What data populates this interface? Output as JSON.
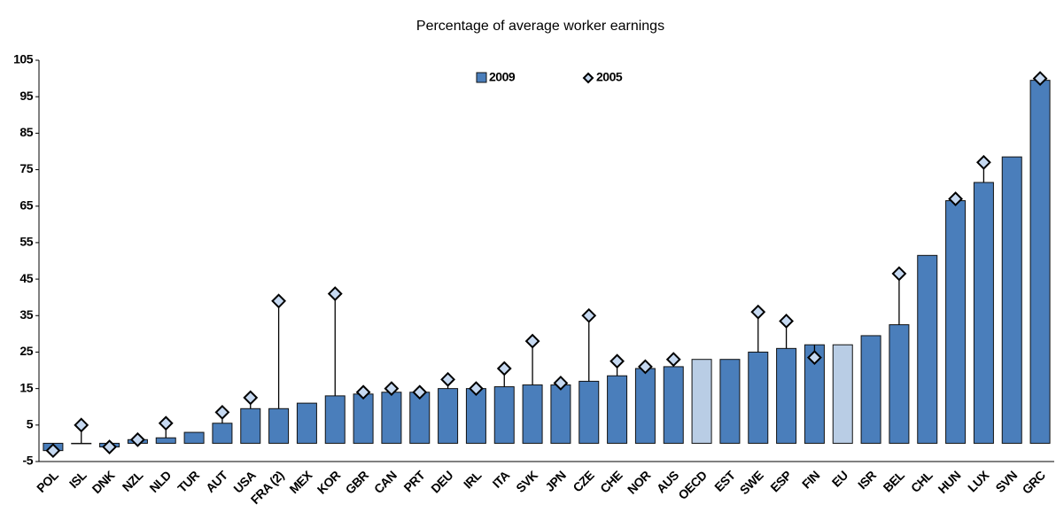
{
  "chart_data": {
    "type": "bar",
    "title": "Percentage of average worker earnings",
    "categories": [
      "POL",
      "ISL",
      "DNK",
      "NZL",
      "NLD",
      "TUR",
      "AUT",
      "USA",
      "FRA (2)",
      "MEX",
      "KOR",
      "GBR",
      "CAN",
      "PRT",
      "DEU",
      "IRL",
      "ITA",
      "SVK",
      "JPN",
      "CZE",
      "CHE",
      "NOR",
      "AUS",
      "OECD",
      "EST",
      "SWE",
      "ESP",
      "FIN",
      "EU",
      "ISR",
      "BEL",
      "CHL",
      "HUN",
      "LUX",
      "SVN",
      "GRC"
    ],
    "series": [
      {
        "name": "2009",
        "color": "#4a7ebb",
        "bar_colors": [
          "#4a7ebb",
          "#4a7ebb",
          "#4a7ebb",
          "#4a7ebb",
          "#4a7ebb",
          "#4a7ebb",
          "#4a7ebb",
          "#4a7ebb",
          "#4a7ebb",
          "#4a7ebb",
          "#4a7ebb",
          "#4a7ebb",
          "#4a7ebb",
          "#4a7ebb",
          "#4a7ebb",
          "#4a7ebb",
          "#4a7ebb",
          "#4a7ebb",
          "#4a7ebb",
          "#4a7ebb",
          "#4a7ebb",
          "#4a7ebb",
          "#4a7ebb",
          "#b9cde5",
          "#4a7ebb",
          "#4a7ebb",
          "#4a7ebb",
          "#4a7ebb",
          "#b9cde5",
          "#4a7ebb",
          "#4a7ebb",
          "#4a7ebb",
          "#4a7ebb",
          "#4a7ebb",
          "#4a7ebb",
          "#4a7ebb"
        ],
        "values": [
          -2,
          0,
          -1,
          1,
          1.5,
          3,
          5.5,
          9.5,
          9.5,
          11,
          13,
          13.5,
          14,
          14,
          15,
          15,
          15.5,
          16,
          16,
          17,
          18.5,
          20.5,
          21,
          23,
          23,
          25,
          26,
          27,
          27,
          29.5,
          32.5,
          51.5,
          66.5,
          71.5,
          78.5,
          99.5
        ]
      },
      {
        "name": "2005",
        "color": "#c6d9f1",
        "marker": "diamond",
        "values": [
          -2,
          5,
          -1,
          1,
          5.5,
          null,
          8.5,
          12.5,
          39,
          null,
          41,
          14,
          15,
          14,
          17.5,
          15,
          20.5,
          28,
          16.5,
          35,
          22.5,
          21,
          23,
          null,
          null,
          36,
          33.5,
          23.5,
          null,
          null,
          46.5,
          null,
          67,
          77,
          null,
          100
        ]
      }
    ],
    "ylim": [
      -5,
      105
    ],
    "yticks": [
      -5,
      5,
      15,
      25,
      35,
      45,
      55,
      65,
      75,
      85,
      95,
      105
    ],
    "grid": false,
    "legend": "top"
  }
}
